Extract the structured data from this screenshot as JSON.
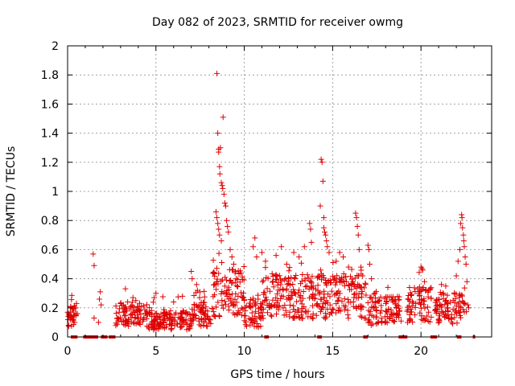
{
  "chart_data": {
    "type": "scatter",
    "title": "Day 082 of 2023, SRMTID for receiver owmg",
    "xlabel": "GPS time / hours",
    "ylabel": "SRMTID / TECUs",
    "xlim": [
      0,
      24
    ],
    "ylim": [
      0,
      2
    ],
    "xticks": [
      0,
      5,
      10,
      15,
      20
    ],
    "xtick_labels": [
      "0",
      "5",
      "10",
      "15",
      "20"
    ],
    "yticks": [
      0,
      0.2,
      0.4,
      0.6,
      0.8,
      1,
      1.2,
      1.4,
      1.6,
      1.8,
      2
    ],
    "ytick_labels": [
      "0",
      "0.2",
      "0.4",
      "0.6",
      "0.8",
      "1",
      "1.2",
      "1.4",
      "1.6",
      "1.8",
      "2"
    ],
    "grid": true,
    "marker": "+",
    "color": "#e00000",
    "background_levels": [
      {
        "x": [
          0.0,
          0.5
        ],
        "base": 0.14
      },
      {
        "x": [
          2.7,
          4.5
        ],
        "base": 0.15
      },
      {
        "x": [
          4.5,
          7.0
        ],
        "base": 0.11
      },
      {
        "x": [
          7.0,
          8.2
        ],
        "base": 0.16
      },
      {
        "x": [
          8.2,
          10.0
        ],
        "base": 0.3
      },
      {
        "x": [
          10.0,
          11.0
        ],
        "base": 0.15
      },
      {
        "x": [
          11.0,
          14.0
        ],
        "base": 0.28
      },
      {
        "x": [
          14.0,
          16.9
        ],
        "base": 0.28
      },
      {
        "x": [
          17.0,
          18.9
        ],
        "base": 0.18
      },
      {
        "x": [
          19.2,
          20.6
        ],
        "base": 0.22
      },
      {
        "x": [
          20.8,
          22.6
        ],
        "base": 0.2
      }
    ],
    "series": [
      {
        "name": "SRMTID",
        "points": [
          [
            0.0,
            0.17
          ],
          [
            0.05,
            0.16
          ],
          [
            0.1,
            0.15
          ],
          [
            0.15,
            0.17
          ],
          [
            0.2,
            0.14
          ],
          [
            0.3,
            0.12
          ],
          [
            0.35,
            0.15
          ],
          [
            0.4,
            0.1
          ],
          [
            0.45,
            0.2
          ],
          [
            0.5,
            0.23
          ],
          [
            0.55,
            0.16
          ],
          [
            1.45,
            0.57
          ],
          [
            1.5,
            0.49
          ],
          [
            1.5,
            0.13
          ],
          [
            1.75,
            0.1
          ],
          [
            1.8,
            0.26
          ],
          [
            1.85,
            0.31
          ],
          [
            1.9,
            0.22
          ],
          [
            8.45,
            1.81
          ],
          [
            8.5,
            1.4
          ],
          [
            8.55,
            1.27
          ],
          [
            8.55,
            1.29
          ],
          [
            8.6,
            1.17
          ],
          [
            8.62,
            1.12
          ],
          [
            8.65,
            1.3
          ],
          [
            8.7,
            1.06
          ],
          [
            8.75,
            1.04
          ],
          [
            8.78,
            1.02
          ],
          [
            8.8,
            1.51
          ],
          [
            8.85,
            0.98
          ],
          [
            8.9,
            0.92
          ],
          [
            8.95,
            0.9
          ],
          [
            9.0,
            0.8
          ],
          [
            9.05,
            0.76
          ],
          [
            9.1,
            0.72
          ],
          [
            8.4,
            0.86
          ],
          [
            8.45,
            0.82
          ],
          [
            8.5,
            0.78
          ],
          [
            8.55,
            0.74
          ],
          [
            8.6,
            0.7
          ],
          [
            8.7,
            0.66
          ],
          [
            9.2,
            0.6
          ],
          [
            9.3,
            0.55
          ],
          [
            9.4,
            0.5
          ],
          [
            9.5,
            0.45
          ],
          [
            10.5,
            0.62
          ],
          [
            10.6,
            0.68
          ],
          [
            10.7,
            0.55
          ],
          [
            11.0,
            0.58
          ],
          [
            11.2,
            0.52
          ],
          [
            11.8,
            0.56
          ],
          [
            12.1,
            0.62
          ],
          [
            12.4,
            0.5
          ],
          [
            12.8,
            0.58
          ],
          [
            13.1,
            0.55
          ],
          [
            13.4,
            0.62
          ],
          [
            13.7,
            0.78
          ],
          [
            13.75,
            0.74
          ],
          [
            13.8,
            0.65
          ],
          [
            14.3,
            0.9
          ],
          [
            14.35,
            1.22
          ],
          [
            14.4,
            1.2
          ],
          [
            14.45,
            1.07
          ],
          [
            14.5,
            0.82
          ],
          [
            14.5,
            0.75
          ],
          [
            14.55,
            0.72
          ],
          [
            14.6,
            0.7
          ],
          [
            14.65,
            0.66
          ],
          [
            14.7,
            0.62
          ],
          [
            14.8,
            0.58
          ],
          [
            15.2,
            0.52
          ],
          [
            15.4,
            0.58
          ],
          [
            15.6,
            0.55
          ],
          [
            15.9,
            0.48
          ],
          [
            16.3,
            0.85
          ],
          [
            16.35,
            0.82
          ],
          [
            16.4,
            0.76
          ],
          [
            16.45,
            0.7
          ],
          [
            16.5,
            0.6
          ],
          [
            16.6,
            0.48
          ],
          [
            16.7,
            0.42
          ],
          [
            17.0,
            0.63
          ],
          [
            17.05,
            0.6
          ],
          [
            17.1,
            0.5
          ],
          [
            17.2,
            0.4
          ],
          [
            20.0,
            0.48
          ],
          [
            20.05,
            0.47
          ],
          [
            20.1,
            0.46
          ],
          [
            20.2,
            0.38
          ],
          [
            22.0,
            0.42
          ],
          [
            22.1,
            0.52
          ],
          [
            22.2,
            0.6
          ],
          [
            22.25,
            0.78
          ],
          [
            22.3,
            0.84
          ],
          [
            22.32,
            0.82
          ],
          [
            22.35,
            0.75
          ],
          [
            22.4,
            0.7
          ],
          [
            22.42,
            0.66
          ],
          [
            22.45,
            0.62
          ],
          [
            22.5,
            0.55
          ],
          [
            22.55,
            0.5
          ],
          [
            22.6,
            0.38
          ],
          [
            22.65,
            0.22
          ],
          [
            22.7,
            0.2
          ],
          [
            7.0,
            0.45
          ],
          [
            7.05,
            0.4
          ],
          [
            7.3,
            0.36
          ],
          [
            7.35,
            0.32
          ],
          [
            5.0,
            0.3
          ],
          [
            6.0,
            0.24
          ],
          [
            6.5,
            0.28
          ],
          [
            4.9,
            0.27
          ],
          [
            3.7,
            0.27
          ],
          [
            3.4,
            0.24
          ]
        ]
      }
    ],
    "data_gaps_at_zero": [
      [
        0.25,
        0.55
      ],
      [
        0.95,
        1.25
      ],
      [
        1.3,
        1.75
      ],
      [
        1.95,
        2.3
      ],
      [
        2.4,
        2.75
      ],
      [
        11.2,
        11.35
      ],
      [
        14.2,
        14.35
      ],
      [
        16.8,
        17.0
      ],
      [
        18.8,
        19.25
      ],
      [
        20.6,
        20.85
      ],
      [
        22.1,
        22.25
      ],
      [
        23.0,
        23.1
      ]
    ]
  }
}
